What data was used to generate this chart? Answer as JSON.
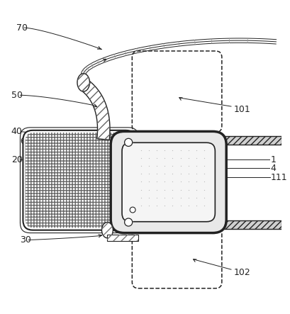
{
  "bg": "#ffffff",
  "lc": "#222222",
  "figsize": [
    4.09,
    4.43
  ],
  "dpi": 100,
  "rail_hatch": "////",
  "bag_hatch": "++",
  "strap_hatch": "///",
  "fs": 9
}
